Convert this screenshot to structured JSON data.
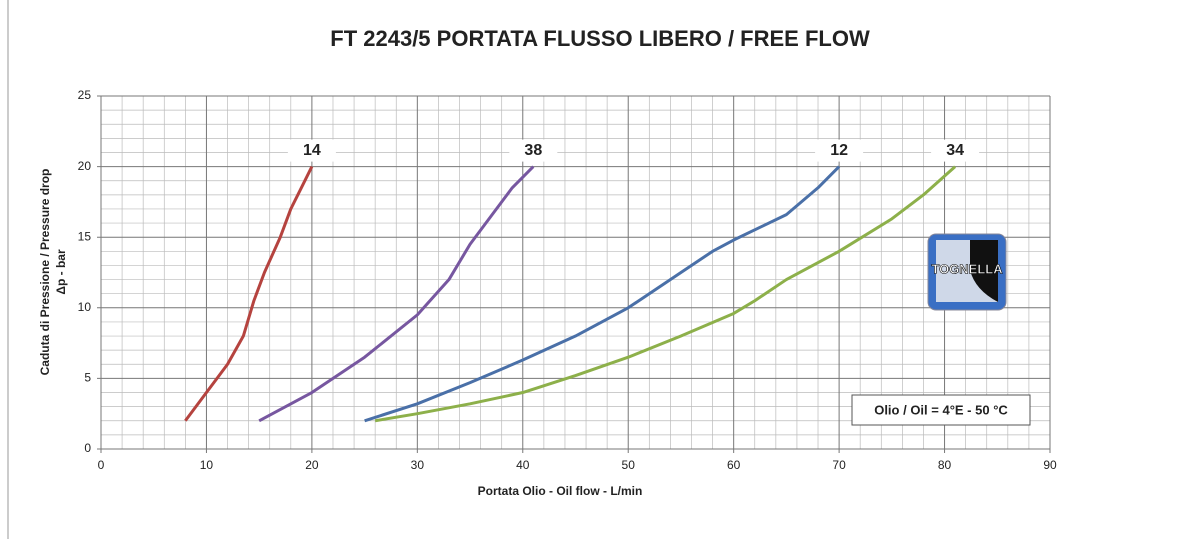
{
  "chart_data": {
    "type": "line",
    "title": "FT 2243/5 PORTATA FLUSSO LIBERO / FREE FLOW",
    "xlabel": "Portata Olio - Oil flow -  L/min",
    "ylabel": [
      "Caduta di Pressione / Pressure drop",
      "Δp - bar"
    ],
    "xlim": [
      0,
      90
    ],
    "xticks": [
      0,
      10,
      20,
      30,
      40,
      50,
      60,
      70,
      80,
      90
    ],
    "ylim": [
      0,
      25
    ],
    "yticks": [
      0,
      5,
      10,
      15,
      20,
      25
    ],
    "grid": true,
    "annotation": "Olio / Oil = 4°E - 50 °C",
    "logo_text": "TOGNELLA",
    "series": [
      {
        "name": "14",
        "color": "#b5433f",
        "x": [
          8,
          10,
          12,
          13.5,
          14.5,
          15.5,
          17,
          18,
          19,
          20
        ],
        "values": [
          2,
          4,
          6,
          8,
          10.5,
          12.5,
          15,
          17,
          18.5,
          20
        ]
      },
      {
        "name": "38",
        "color": "#7757a0",
        "x": [
          15,
          20,
          25,
          30,
          33,
          35,
          37,
          39,
          41
        ],
        "values": [
          2,
          4,
          6.5,
          9.5,
          12,
          14.5,
          16.5,
          18.5,
          20
        ]
      },
      {
        "name": "12",
        "color": "#4a70a8",
        "x": [
          25,
          30,
          35,
          40,
          45,
          50,
          55,
          58,
          60,
          65,
          68,
          70
        ],
        "values": [
          2,
          3.2,
          4.7,
          6.3,
          8,
          10,
          12.5,
          14,
          14.8,
          16.6,
          18.5,
          20
        ]
      },
      {
        "name": "34",
        "color": "#8db04a",
        "x": [
          26,
          30,
          35,
          40,
          45,
          50,
          55,
          60,
          62,
          65,
          70,
          75,
          78,
          81
        ],
        "values": [
          2,
          2.5,
          3.2,
          4,
          5.2,
          6.5,
          8,
          9.6,
          10.5,
          12,
          14,
          16.3,
          18,
          20
        ]
      }
    ]
  }
}
